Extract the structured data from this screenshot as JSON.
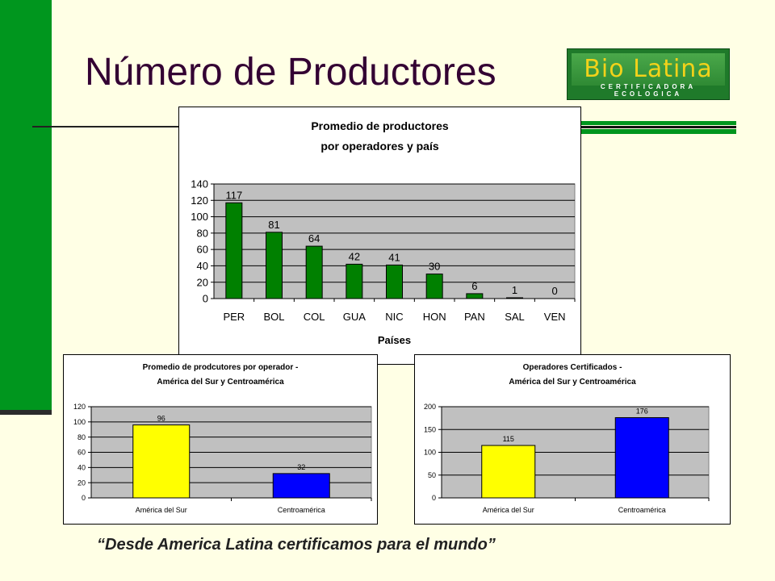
{
  "slide": {
    "title": "Número de Productores",
    "footer": "“Desde America Latina certificamos para el mundo”"
  },
  "logo": {
    "word": "Bio Latina",
    "subtitle": "CERTIFICADORA ECOLOGICA"
  },
  "colors": {
    "accent_green": "#00961e",
    "bar_green": "#008000",
    "bar_yellow": "#ffff00",
    "bar_blue": "#0000ff",
    "plot_background": "#c0c0c0",
    "title_color": "#330033"
  },
  "chart_data": [
    {
      "type": "bar",
      "title": "Promedio de productores por operadores y país",
      "title_lines": [
        "Promedio de productores",
        "por operadores y país"
      ],
      "xlabel": "Países",
      "ylabel": "",
      "categories": [
        "PER",
        "BOL",
        "COL",
        "GUA",
        "NIC",
        "HON",
        "PAN",
        "SAL",
        "VEN"
      ],
      "values": [
        117,
        81,
        64,
        42,
        41,
        30,
        6,
        1,
        0
      ],
      "ylim": [
        0,
        140
      ],
      "yticks": [
        0,
        20,
        40,
        60,
        80,
        100,
        120,
        140
      ],
      "grid": true,
      "legend": "none",
      "bar_color": "#008000"
    },
    {
      "type": "bar",
      "title": "Promedio de prodcutores por operador - América del Sur y Centroamérica",
      "title_lines": [
        "Promedio de prodcutores por operador  -",
        "América del Sur y Centroamérica"
      ],
      "xlabel": "",
      "ylabel": "",
      "categories": [
        "América del Sur",
        "Centroamérica"
      ],
      "values": [
        96,
        32
      ],
      "ylim": [
        0,
        120
      ],
      "yticks": [
        0,
        20,
        40,
        60,
        80,
        100,
        120
      ],
      "grid": true,
      "legend": "none",
      "bar_colors": [
        "#ffff00",
        "#0000ff"
      ]
    },
    {
      "type": "bar",
      "title": "Operadores Certificados - América del Sur y Centroamérica",
      "title_lines": [
        "Operadores Certificados -",
        "América del Sur y Centroamérica"
      ],
      "xlabel": "",
      "ylabel": "",
      "categories": [
        "América del Sur",
        "Centroamérica"
      ],
      "values": [
        115,
        176
      ],
      "ylim": [
        0,
        200
      ],
      "yticks": [
        0,
        50,
        100,
        150,
        200
      ],
      "grid": true,
      "legend": "none",
      "bar_colors": [
        "#ffff00",
        "#0000ff"
      ]
    }
  ]
}
